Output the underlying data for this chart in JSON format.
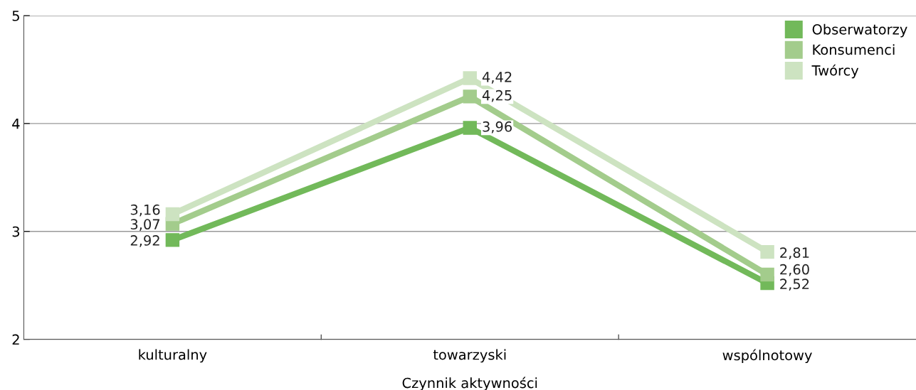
{
  "chart_data": {
    "type": "line",
    "xlabel": "Czynnik aktywności",
    "categories": [
      "kulturalny",
      "towarzyski",
      "wspólnotowy"
    ],
    "series": [
      {
        "name": "Obserwatorzy",
        "color": "#72b95a",
        "values": [
          2.92,
          3.96,
          2.52
        ],
        "value_labels": [
          "2,92",
          "3,96",
          "2,52"
        ]
      },
      {
        "name": "Konsumenci",
        "color": "#a3cc8c",
        "values": [
          3.07,
          4.25,
          2.6
        ],
        "value_labels": [
          "3,07",
          "4,25",
          "2,60"
        ]
      },
      {
        "name": "Twórcy",
        "color": "#cde3c1",
        "values": [
          3.16,
          4.42,
          2.81
        ],
        "value_labels": [
          "3,16",
          "4,42",
          "2,81"
        ]
      }
    ],
    "ylim": [
      2,
      5
    ],
    "yticks": [
      2,
      3,
      4,
      5
    ],
    "grid": "y",
    "legend": "top right",
    "marker": "square",
    "line_style": "solid"
  }
}
